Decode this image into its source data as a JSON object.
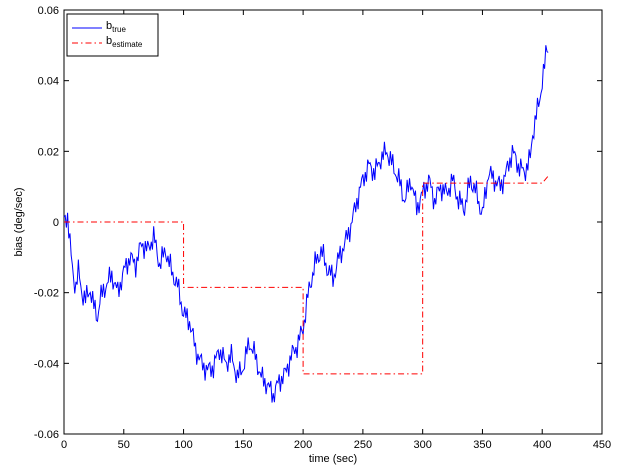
{
  "chart_data": {
    "type": "line",
    "title": "",
    "xlabel": "time (sec)",
    "ylabel": "bias (deg/sec)",
    "xlim": [
      0,
      450
    ],
    "ylim": [
      -0.06,
      0.06
    ],
    "x_ticks": [
      0,
      50,
      100,
      150,
      200,
      250,
      300,
      350,
      400,
      450
    ],
    "y_ticks": [
      -0.06,
      -0.04,
      -0.02,
      0,
      0.02,
      0.04,
      0.06
    ],
    "x_tick_labels": [
      "0",
      "50",
      "100",
      "150",
      "200",
      "250",
      "300",
      "350",
      "400",
      "450"
    ],
    "y_tick_labels": [
      "-0.06",
      "-0.04",
      "-0.02",
      "0",
      "0.02",
      "0.04",
      "0.06"
    ],
    "grid": false,
    "legend_position": "top-left",
    "legend": [
      {
        "base": "b",
        "sub": "true",
        "color": "#0000ff",
        "dash": "solid"
      },
      {
        "base": "b",
        "sub": "estimate",
        "color": "#ff0000",
        "dash": "dashdot"
      }
    ],
    "series": [
      {
        "name": "b_true",
        "color": "#0000ff",
        "x": [
          0,
          3,
          6,
          8,
          10,
          12,
          15,
          18,
          22,
          25,
          28,
          30,
          35,
          40,
          45,
          50,
          55,
          60,
          65,
          70,
          75,
          78,
          80,
          85,
          90,
          95,
          100,
          105,
          110,
          115,
          120,
          125,
          130,
          135,
          140,
          145,
          150,
          155,
          160,
          165,
          170,
          175,
          180,
          185,
          190,
          195,
          200,
          205,
          210,
          215,
          220,
          225,
          230,
          235,
          240,
          245,
          250,
          255,
          260,
          265,
          270,
          275,
          280,
          285,
          290,
          295,
          300,
          305,
          310,
          315,
          320,
          325,
          330,
          335,
          340,
          345,
          350,
          355,
          360,
          365,
          370,
          375,
          380,
          385,
          390,
          392,
          395,
          398,
          400,
          402,
          404,
          405
        ],
        "y": [
          0.0,
          0.002,
          -0.01,
          -0.016,
          -0.018,
          -0.014,
          -0.02,
          -0.022,
          -0.019,
          -0.024,
          -0.027,
          -0.022,
          -0.018,
          -0.015,
          -0.02,
          -0.014,
          -0.01,
          -0.012,
          -0.006,
          -0.008,
          -0.004,
          -0.009,
          -0.012,
          -0.008,
          -0.014,
          -0.018,
          -0.026,
          -0.028,
          -0.036,
          -0.04,
          -0.042,
          -0.041,
          -0.036,
          -0.04,
          -0.038,
          -0.044,
          -0.041,
          -0.034,
          -0.038,
          -0.044,
          -0.046,
          -0.049,
          -0.045,
          -0.043,
          -0.038,
          -0.035,
          -0.03,
          -0.019,
          -0.012,
          -0.008,
          -0.013,
          -0.016,
          -0.01,
          -0.006,
          -0.001,
          0.006,
          0.012,
          0.016,
          0.014,
          0.018,
          0.02,
          0.016,
          0.012,
          0.006,
          0.012,
          0.004,
          0.008,
          0.012,
          0.006,
          0.01,
          0.008,
          0.012,
          0.006,
          0.004,
          0.012,
          0.008,
          0.002,
          0.014,
          0.012,
          0.01,
          0.014,
          0.02,
          0.016,
          0.014,
          0.018,
          0.025,
          0.03,
          0.035,
          0.04,
          0.044,
          0.05,
          0.048
        ]
      },
      {
        "name": "b_estimate",
        "color": "#ff0000",
        "x": [
          0,
          100,
          100,
          200,
          200,
          300,
          300,
          400,
          400,
          405
        ],
        "y": [
          0.0,
          0.0,
          -0.0185,
          -0.0185,
          -0.043,
          -0.043,
          0.011,
          0.011,
          0.011,
          0.013
        ]
      }
    ]
  }
}
